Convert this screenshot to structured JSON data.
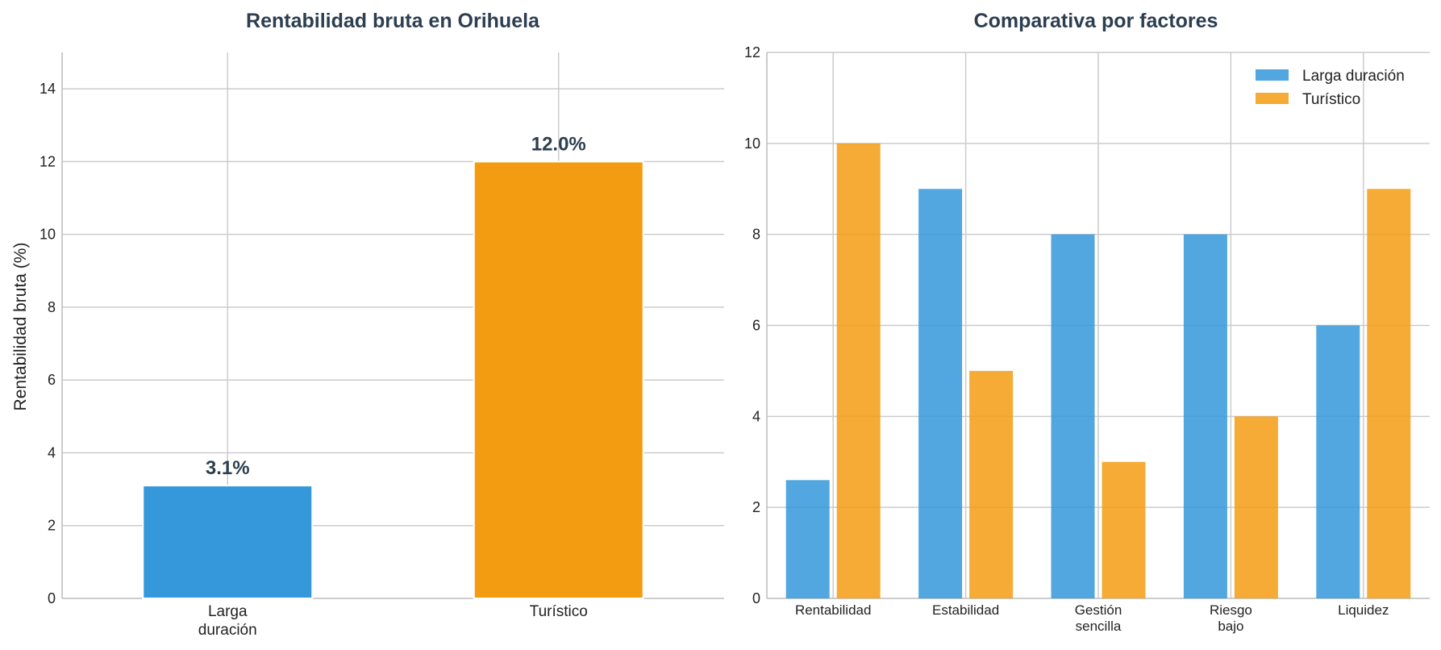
{
  "chart_data": [
    {
      "type": "bar",
      "title": "Rentabilidad bruta en Orihuela",
      "xlabel": "",
      "ylabel": "Rentabilidad bruta (%)",
      "categories": [
        [
          "Larga",
          "duración"
        ],
        [
          "Turístico"
        ]
      ],
      "values": [
        3.1,
        12.0
      ],
      "data_labels": [
        "3.1%",
        "12.0%"
      ],
      "colors": [
        "#3498db",
        "#f39c12"
      ],
      "ylim": [
        0,
        15
      ],
      "yticks": [
        0,
        2,
        4,
        6,
        8,
        10,
        12,
        14
      ],
      "grid": true
    },
    {
      "type": "bar",
      "title": "Comparativa por factores",
      "xlabel": "",
      "ylabel": "",
      "categories": [
        [
          "Rentabilidad"
        ],
        [
          "Estabilidad"
        ],
        [
          "Gestión",
          "sencilla"
        ],
        [
          "Riesgo",
          "bajo"
        ],
        [
          "Liquidez"
        ]
      ],
      "series": [
        {
          "name": "Larga duración",
          "values": [
            2.6,
            9,
            8,
            8,
            6
          ],
          "color": "#3498db"
        },
        {
          "name": "Turístico",
          "values": [
            10,
            5,
            3,
            4,
            9
          ],
          "color": "#f39c12"
        }
      ],
      "ylim": [
        0,
        12
      ],
      "yticks": [
        0,
        2,
        4,
        6,
        8,
        10,
        12
      ],
      "legend": "top-right",
      "grid": true
    }
  ]
}
